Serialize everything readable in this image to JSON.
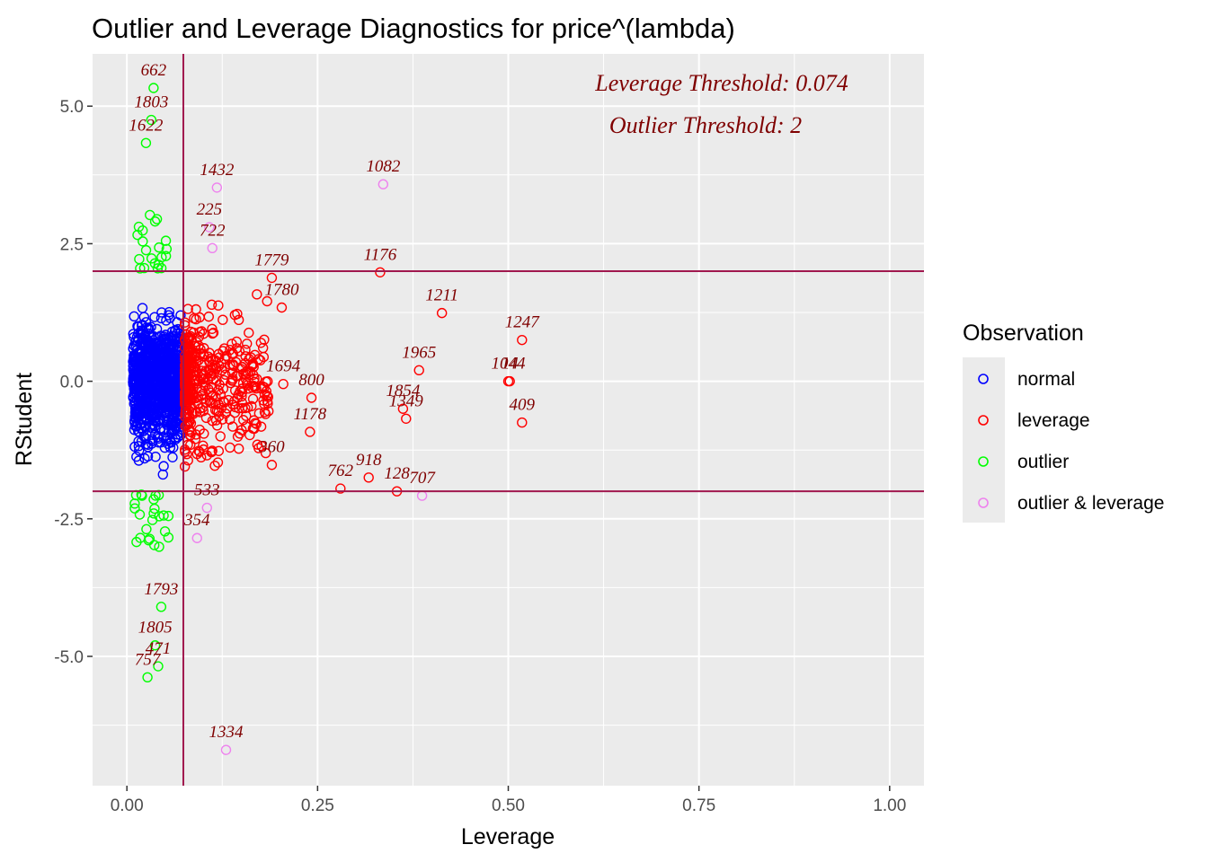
{
  "chart_data": {
    "type": "scatter",
    "title": "Outlier and Leverage Diagnostics for price^(lambda)",
    "xlabel": "Leverage",
    "ylabel": "RStudent",
    "xlim": [
      -0.045,
      1.045
    ],
    "ylim": [
      -7.35,
      5.95
    ],
    "x_ticks": [
      0.0,
      0.25,
      0.5,
      0.75,
      1.0
    ],
    "x_tick_labels": [
      "0.00",
      "0.25",
      "0.50",
      "0.75",
      "1.00"
    ],
    "y_ticks": [
      -5.0,
      -2.5,
      0.0,
      2.5,
      5.0
    ],
    "y_tick_labels": [
      "-5.0",
      "-2.5",
      "0.0",
      "2.5",
      "5.0"
    ],
    "grid": true,
    "reference_lines": {
      "leverage_threshold_x": 0.074,
      "outlier_thresholds_y": [
        2,
        -2
      ]
    },
    "annotations": [
      "Leverage Threshold: 0.074",
      "Outlier Threshold: 2"
    ],
    "legend": {
      "title": "Observation",
      "position": "right",
      "entries": [
        {
          "name": "normal",
          "color": "#0000FF"
        },
        {
          "name": "leverage",
          "color": "#FF0000"
        },
        {
          "name": "outlier",
          "color": "#00FF00"
        },
        {
          "name": "outlier & leverage",
          "color": "#EE82EE"
        }
      ]
    },
    "labeled_points": [
      {
        "label": "662",
        "x": 0.035,
        "y": 5.33,
        "group": "outlier"
      },
      {
        "label": "1803",
        "x": 0.032,
        "y": 4.75,
        "group": "outlier"
      },
      {
        "label": "1622",
        "x": 0.025,
        "y": 4.33,
        "group": "outlier"
      },
      {
        "label": "1432",
        "x": 0.118,
        "y": 3.52,
        "group": "outlier & leverage"
      },
      {
        "label": "1082",
        "x": 0.336,
        "y": 3.58,
        "group": "outlier & leverage"
      },
      {
        "label": "225",
        "x": 0.108,
        "y": 2.8,
        "group": "outlier & leverage"
      },
      {
        "label": "722",
        "x": 0.112,
        "y": 2.42,
        "group": "outlier & leverage"
      },
      {
        "label": "1779",
        "x": 0.19,
        "y": 1.88,
        "group": "leverage"
      },
      {
        "label": "1176",
        "x": 0.332,
        "y": 1.98,
        "group": "leverage"
      },
      {
        "label": "1211",
        "x": 0.413,
        "y": 1.24,
        "group": "leverage"
      },
      {
        "label": "1247",
        "x": 0.518,
        "y": 0.75,
        "group": "leverage"
      },
      {
        "label": "1780",
        "x": 0.203,
        "y": 1.34,
        "group": "leverage"
      },
      {
        "label": "1965",
        "x": 0.383,
        "y": 0.2,
        "group": "leverage"
      },
      {
        "label": "1044",
        "x": 0.5,
        "y": 0.0,
        "group": "leverage"
      },
      {
        "label": "14",
        "x": 0.502,
        "y": 0.0,
        "group": "leverage"
      },
      {
        "label": "409",
        "x": 0.518,
        "y": -0.75,
        "group": "leverage"
      },
      {
        "label": "1854",
        "x": 0.362,
        "y": -0.5,
        "group": "leverage"
      },
      {
        "label": "1349",
        "x": 0.366,
        "y": -0.68,
        "group": "leverage"
      },
      {
        "label": "1178",
        "x": 0.24,
        "y": -0.92,
        "group": "leverage"
      },
      {
        "label": "1694",
        "x": 0.205,
        "y": -0.05,
        "group": "leverage"
      },
      {
        "label": "800",
        "x": 0.242,
        "y": -0.3,
        "group": "leverage"
      },
      {
        "label": "360",
        "x": 0.19,
        "y": -1.52,
        "group": "leverage"
      },
      {
        "label": "762",
        "x": 0.28,
        "y": -1.95,
        "group": "leverage"
      },
      {
        "label": "918",
        "x": 0.317,
        "y": -1.75,
        "group": "leverage"
      },
      {
        "label": "128",
        "x": 0.354,
        "y": -2.0,
        "group": "leverage"
      },
      {
        "label": "707",
        "x": 0.387,
        "y": -2.08,
        "group": "outlier & leverage"
      },
      {
        "label": "533",
        "x": 0.105,
        "y": -2.3,
        "group": "outlier & leverage"
      },
      {
        "label": "354",
        "x": 0.092,
        "y": -2.85,
        "group": "outlier & leverage"
      },
      {
        "label": "1793",
        "x": 0.045,
        "y": -4.1,
        "group": "outlier"
      },
      {
        "label": "1805",
        "x": 0.037,
        "y": -4.8,
        "group": "outlier"
      },
      {
        "label": "471",
        "x": 0.041,
        "y": -5.18,
        "group": "outlier"
      },
      {
        "label": "757",
        "x": 0.027,
        "y": -5.38,
        "group": "outlier"
      },
      {
        "label": "1334",
        "x": 0.13,
        "y": -6.7,
        "group": "outlier & leverage"
      }
    ]
  }
}
